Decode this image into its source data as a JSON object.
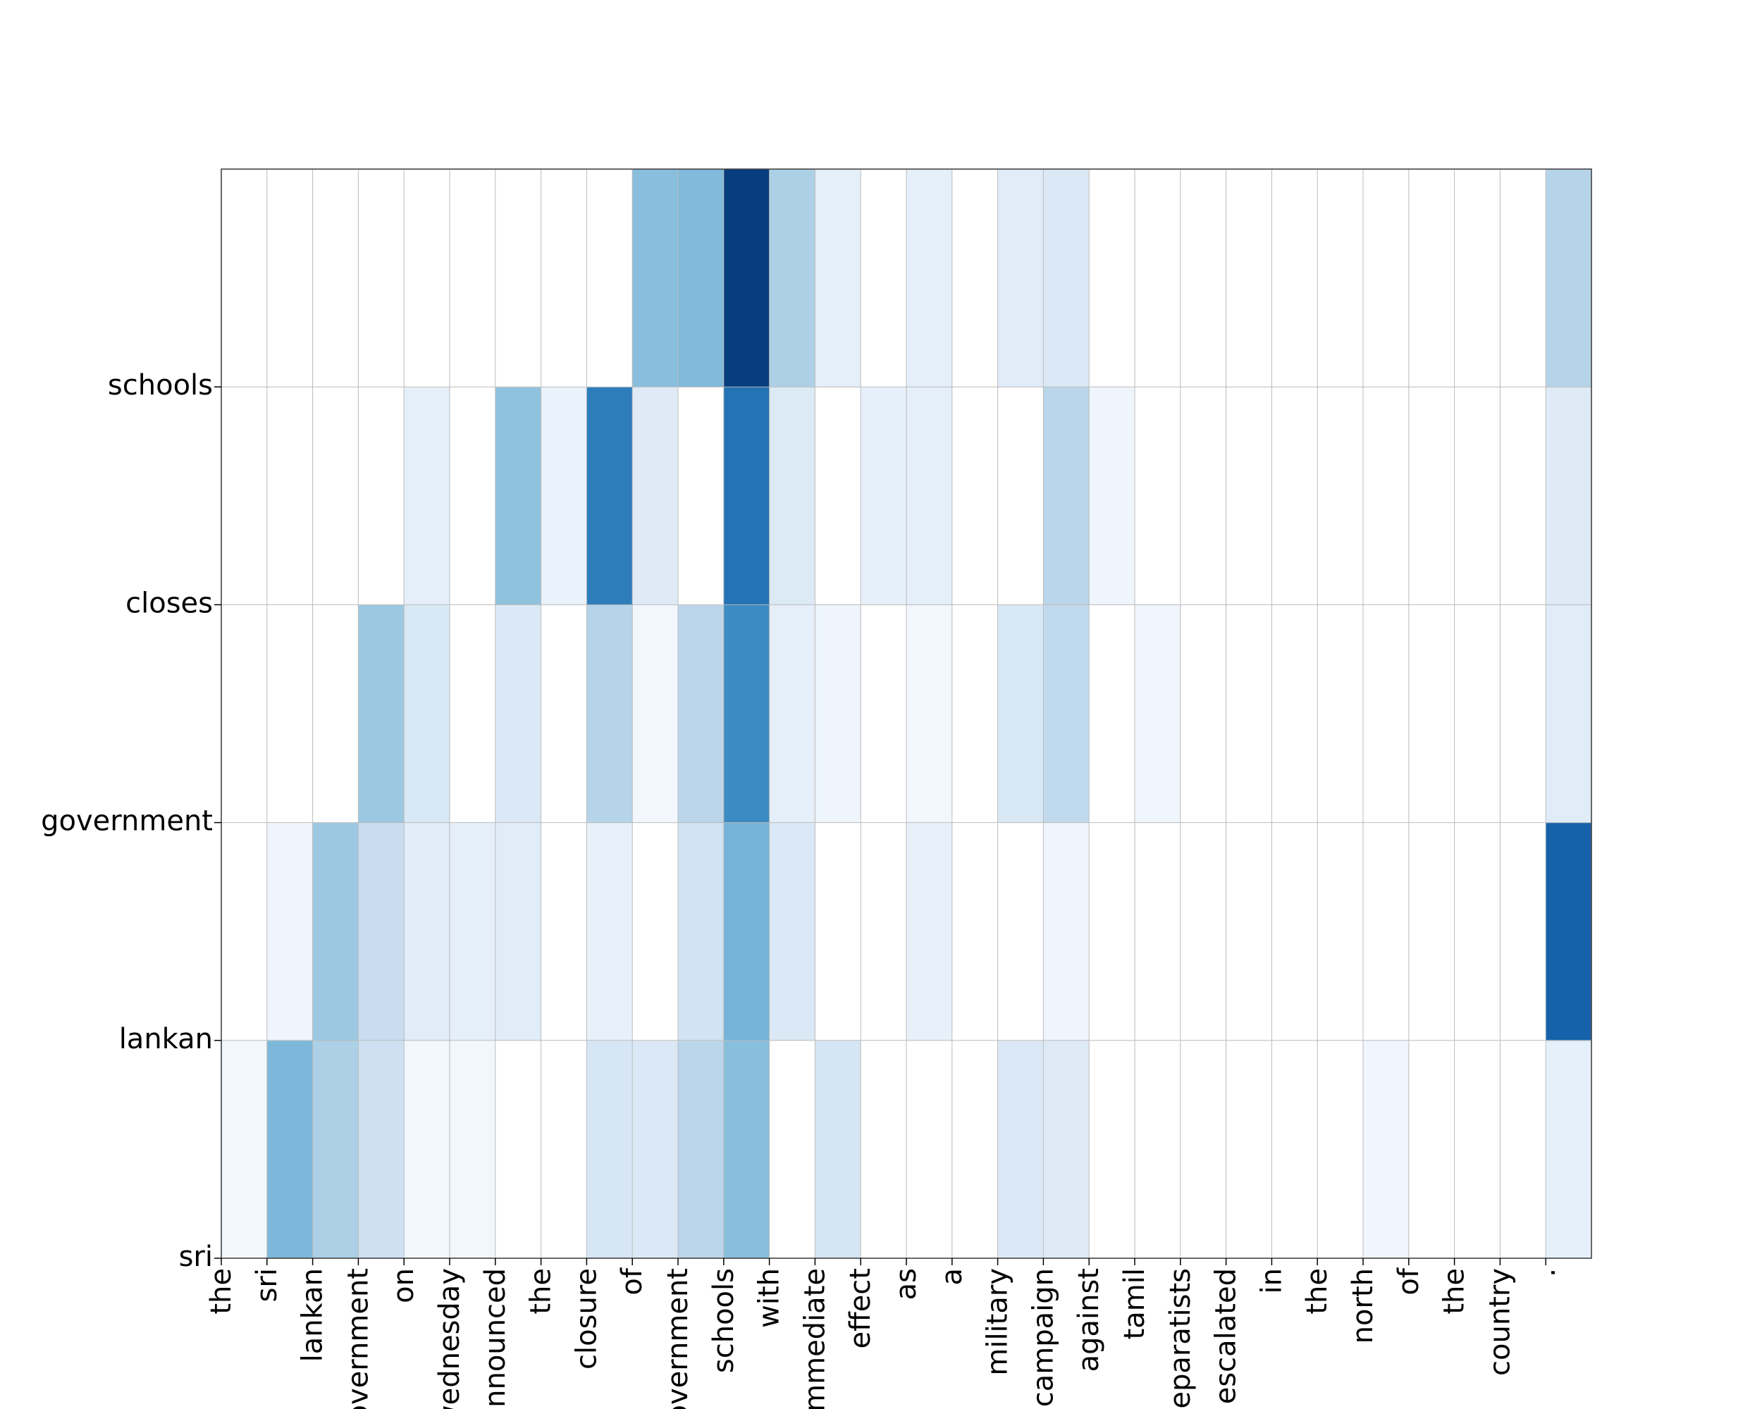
{
  "chart_data": {
    "type": "heatmap",
    "title": "",
    "xlabel": "",
    "ylabel": "",
    "x_tokens": [
      "the",
      "sri",
      "lankan",
      "government",
      "on",
      "wednesday",
      "announced",
      "the",
      "closure",
      "of",
      "government",
      "schools",
      "with",
      "immediate",
      "effect",
      "as",
      "a",
      "military",
      "campaign",
      "against",
      "tamil",
      "separatists",
      "escalated",
      "in",
      "the",
      "north",
      "of",
      "the",
      "country",
      "."
    ],
    "y_tokens": [
      "sri",
      "lankan",
      "government",
      "closes",
      "schools"
    ],
    "y_tick_labels": [
      "sri",
      "lankan",
      "government",
      "closes",
      "schools"
    ],
    "colormap": "Blues",
    "grid": true,
    "rows": [
      {
        "token": "sri",
        "values": [
          0.03,
          0.48,
          0.35,
          0.22,
          0.03,
          0.03,
          0,
          0,
          0.17,
          0.15,
          0.3,
          0.45,
          0,
          0.18,
          0,
          0,
          0,
          0.15,
          0.13,
          0,
          0,
          0,
          0,
          0,
          0,
          0.04,
          0,
          0,
          0,
          0.09
        ]
      },
      {
        "token": "lankan",
        "values": [
          0,
          0.05,
          0.4,
          0.25,
          0.12,
          0.1,
          0.12,
          0,
          0.08,
          0,
          0.2,
          0.5,
          0.15,
          0,
          0,
          0.08,
          0,
          0,
          0.05,
          0,
          0,
          0,
          0,
          0,
          0,
          0,
          0,
          0,
          0,
          0.85
        ]
      },
      {
        "token": "government",
        "values": [
          0,
          0,
          0,
          0.4,
          0.16,
          0,
          0.15,
          0,
          0.32,
          0.03,
          0.3,
          0.68,
          0.1,
          0.05,
          0,
          0.03,
          0,
          0.16,
          0.28,
          0,
          0.04,
          0,
          0,
          0,
          0,
          0,
          0,
          0,
          0,
          0.12
        ]
      },
      {
        "token": "closes",
        "values": [
          0,
          0,
          0,
          0,
          0.1,
          0,
          0.43,
          0.07,
          0.74,
          0.13,
          0,
          0.78,
          0.14,
          0,
          0.09,
          0.1,
          0,
          0,
          0.31,
          0.05,
          0,
          0,
          0,
          0,
          0,
          0,
          0,
          0,
          0,
          0.13
        ]
      },
      {
        "token": "schools",
        "values": [
          0,
          0,
          0,
          0,
          0,
          0,
          0,
          0,
          0,
          0.45,
          0.47,
          1.0,
          0.35,
          0.1,
          0,
          0.1,
          0,
          0.12,
          0.15,
          0,
          0,
          0,
          0,
          0,
          0,
          0,
          0,
          0,
          0,
          0.32
        ]
      }
    ]
  }
}
